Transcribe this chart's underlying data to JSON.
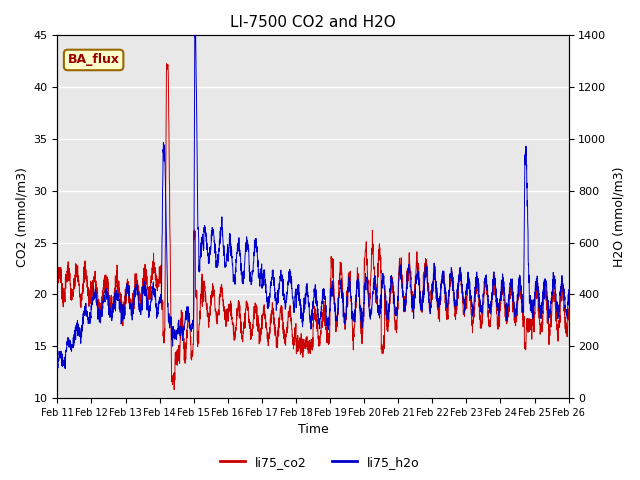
{
  "title": "LI-7500 CO2 and H2O",
  "xlabel": "Time",
  "ylabel_left": "CO2 (mmol/m3)",
  "ylabel_right": "H2O (mmol/m3)",
  "ylim_left": [
    10,
    45
  ],
  "ylim_right": [
    0,
    1400
  ],
  "yticks_left": [
    10,
    15,
    20,
    25,
    30,
    35,
    40,
    45
  ],
  "yticks_right": [
    0,
    200,
    400,
    600,
    800,
    1000,
    1200,
    1400
  ],
  "date_labels": [
    "Feb 11",
    "Feb 12",
    "Feb 13",
    "Feb 14",
    "Feb 15",
    "Feb 16",
    "Feb 17",
    "Feb 18",
    "Feb 19",
    "Feb 20",
    "Feb 21",
    "Feb 22",
    "Feb 23",
    "Feb 24",
    "Feb 25",
    "Feb 26"
  ],
  "co2_color": "#cc0000",
  "h2o_color": "#0000cc",
  "legend_label_co2": "li75_co2",
  "legend_label_h2o": "li75_h2o",
  "annotation_text": "BA_flux",
  "annotation_bg": "#ffffcc",
  "annotation_border": "#996600",
  "annotation_text_color": "#990000",
  "background_color": "#e8e8e8",
  "grid_color": "#ffffff",
  "title_fontsize": 11,
  "axis_label_fontsize": 9,
  "tick_fontsize": 8,
  "legend_fontsize": 9
}
